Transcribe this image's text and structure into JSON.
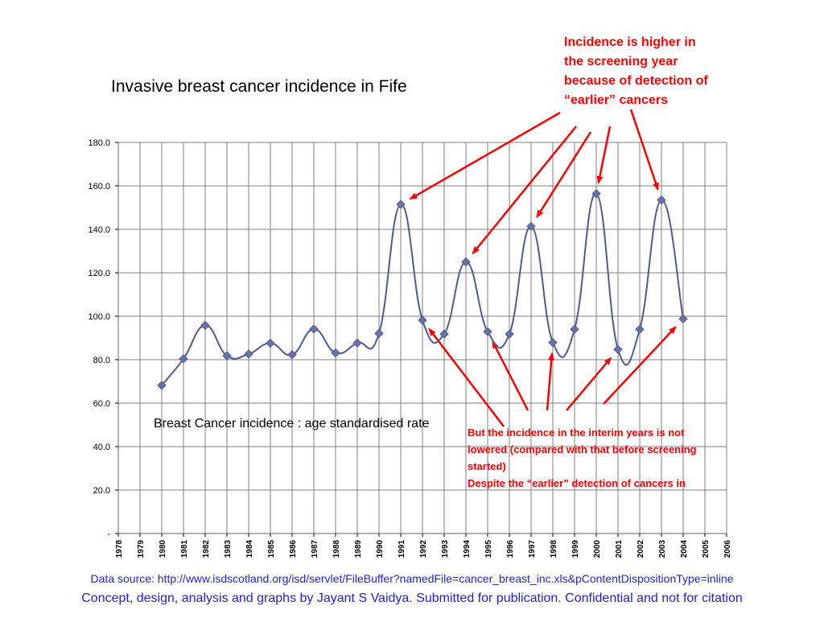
{
  "title": "Invasive breast cancer incidence in Fife",
  "annotations": {
    "top": "Incidence is higher in the screening year because of detection of “earlier” cancers",
    "bottom_line1": "But the incidence in the interim years is not lowered (compared with that before screening started)",
    "bottom_line2": "Despite the “earlier” detection of cancers in"
  },
  "series_label": "Breast Cancer incidence : age standardised rate",
  "footer": {
    "source": "Data source: http://www.isdscotland.org/isd/servlet/FileBuffer?namedFile=cancer_breast_inc.xls&pContentDispositionType=inline",
    "credit": "Concept, design, analysis and graphs by Jayant S Vaidya.  Submitted for publication. Confidential and not for citation"
  },
  "colors": {
    "line": "#4f5b8f",
    "marker": "#6a73a8",
    "annotation": "#ff0000",
    "footer": "#1f1fd9",
    "grid": "#7f7f7f"
  },
  "chart_data": {
    "type": "line",
    "title": "Invasive breast cancer incidence in Fife",
    "x": [
      1978,
      1979,
      1980,
      1981,
      1982,
      1983,
      1984,
      1985,
      1986,
      1987,
      1988,
      1989,
      1990,
      1991,
      1992,
      1993,
      1994,
      1995,
      1996,
      1997,
      1998,
      1999,
      2000,
      2001,
      2002,
      2003,
      2004,
      2005,
      2006
    ],
    "x_tick_labels": [
      "1978",
      "1979",
      "1980",
      "1981",
      "1982",
      "1983",
      "1984",
      "1985",
      "1986",
      "1987",
      "1988",
      "1989",
      "1990",
      "1991",
      "1992",
      "1993",
      "1994",
      "1995",
      "1996",
      "1997",
      "1998",
      "1999",
      "2000",
      "2001",
      "2002",
      "2003",
      "2004",
      "2005",
      "2006"
    ],
    "y_tick_labels": [
      "-",
      "20.0",
      "40.0",
      "60.0",
      "80.0",
      "100.0",
      "120.0",
      "140.0",
      "160.0",
      "180.0"
    ],
    "ylim": [
      0,
      180
    ],
    "grid": true,
    "series": [
      {
        "name": "Breast Cancer incidence : age standardised rate",
        "x": [
          1980,
          1981,
          1982,
          1983,
          1984,
          1985,
          1986,
          1987,
          1988,
          1989,
          1990,
          1991,
          1992,
          1993,
          1994,
          1995,
          1996,
          1997,
          1998,
          1999,
          2000,
          2001,
          2002,
          2003,
          2004
        ],
        "values": [
          68.2,
          80.4,
          95.8,
          81.8,
          82.6,
          87.6,
          82.3,
          94.1,
          83.1,
          87.7,
          92.1,
          151.5,
          98.2,
          91.8,
          125.0,
          92.9,
          91.8,
          141.4,
          87.9,
          94.0,
          156.4,
          84.7,
          94.0,
          153.5,
          98.8
        ]
      }
    ]
  }
}
